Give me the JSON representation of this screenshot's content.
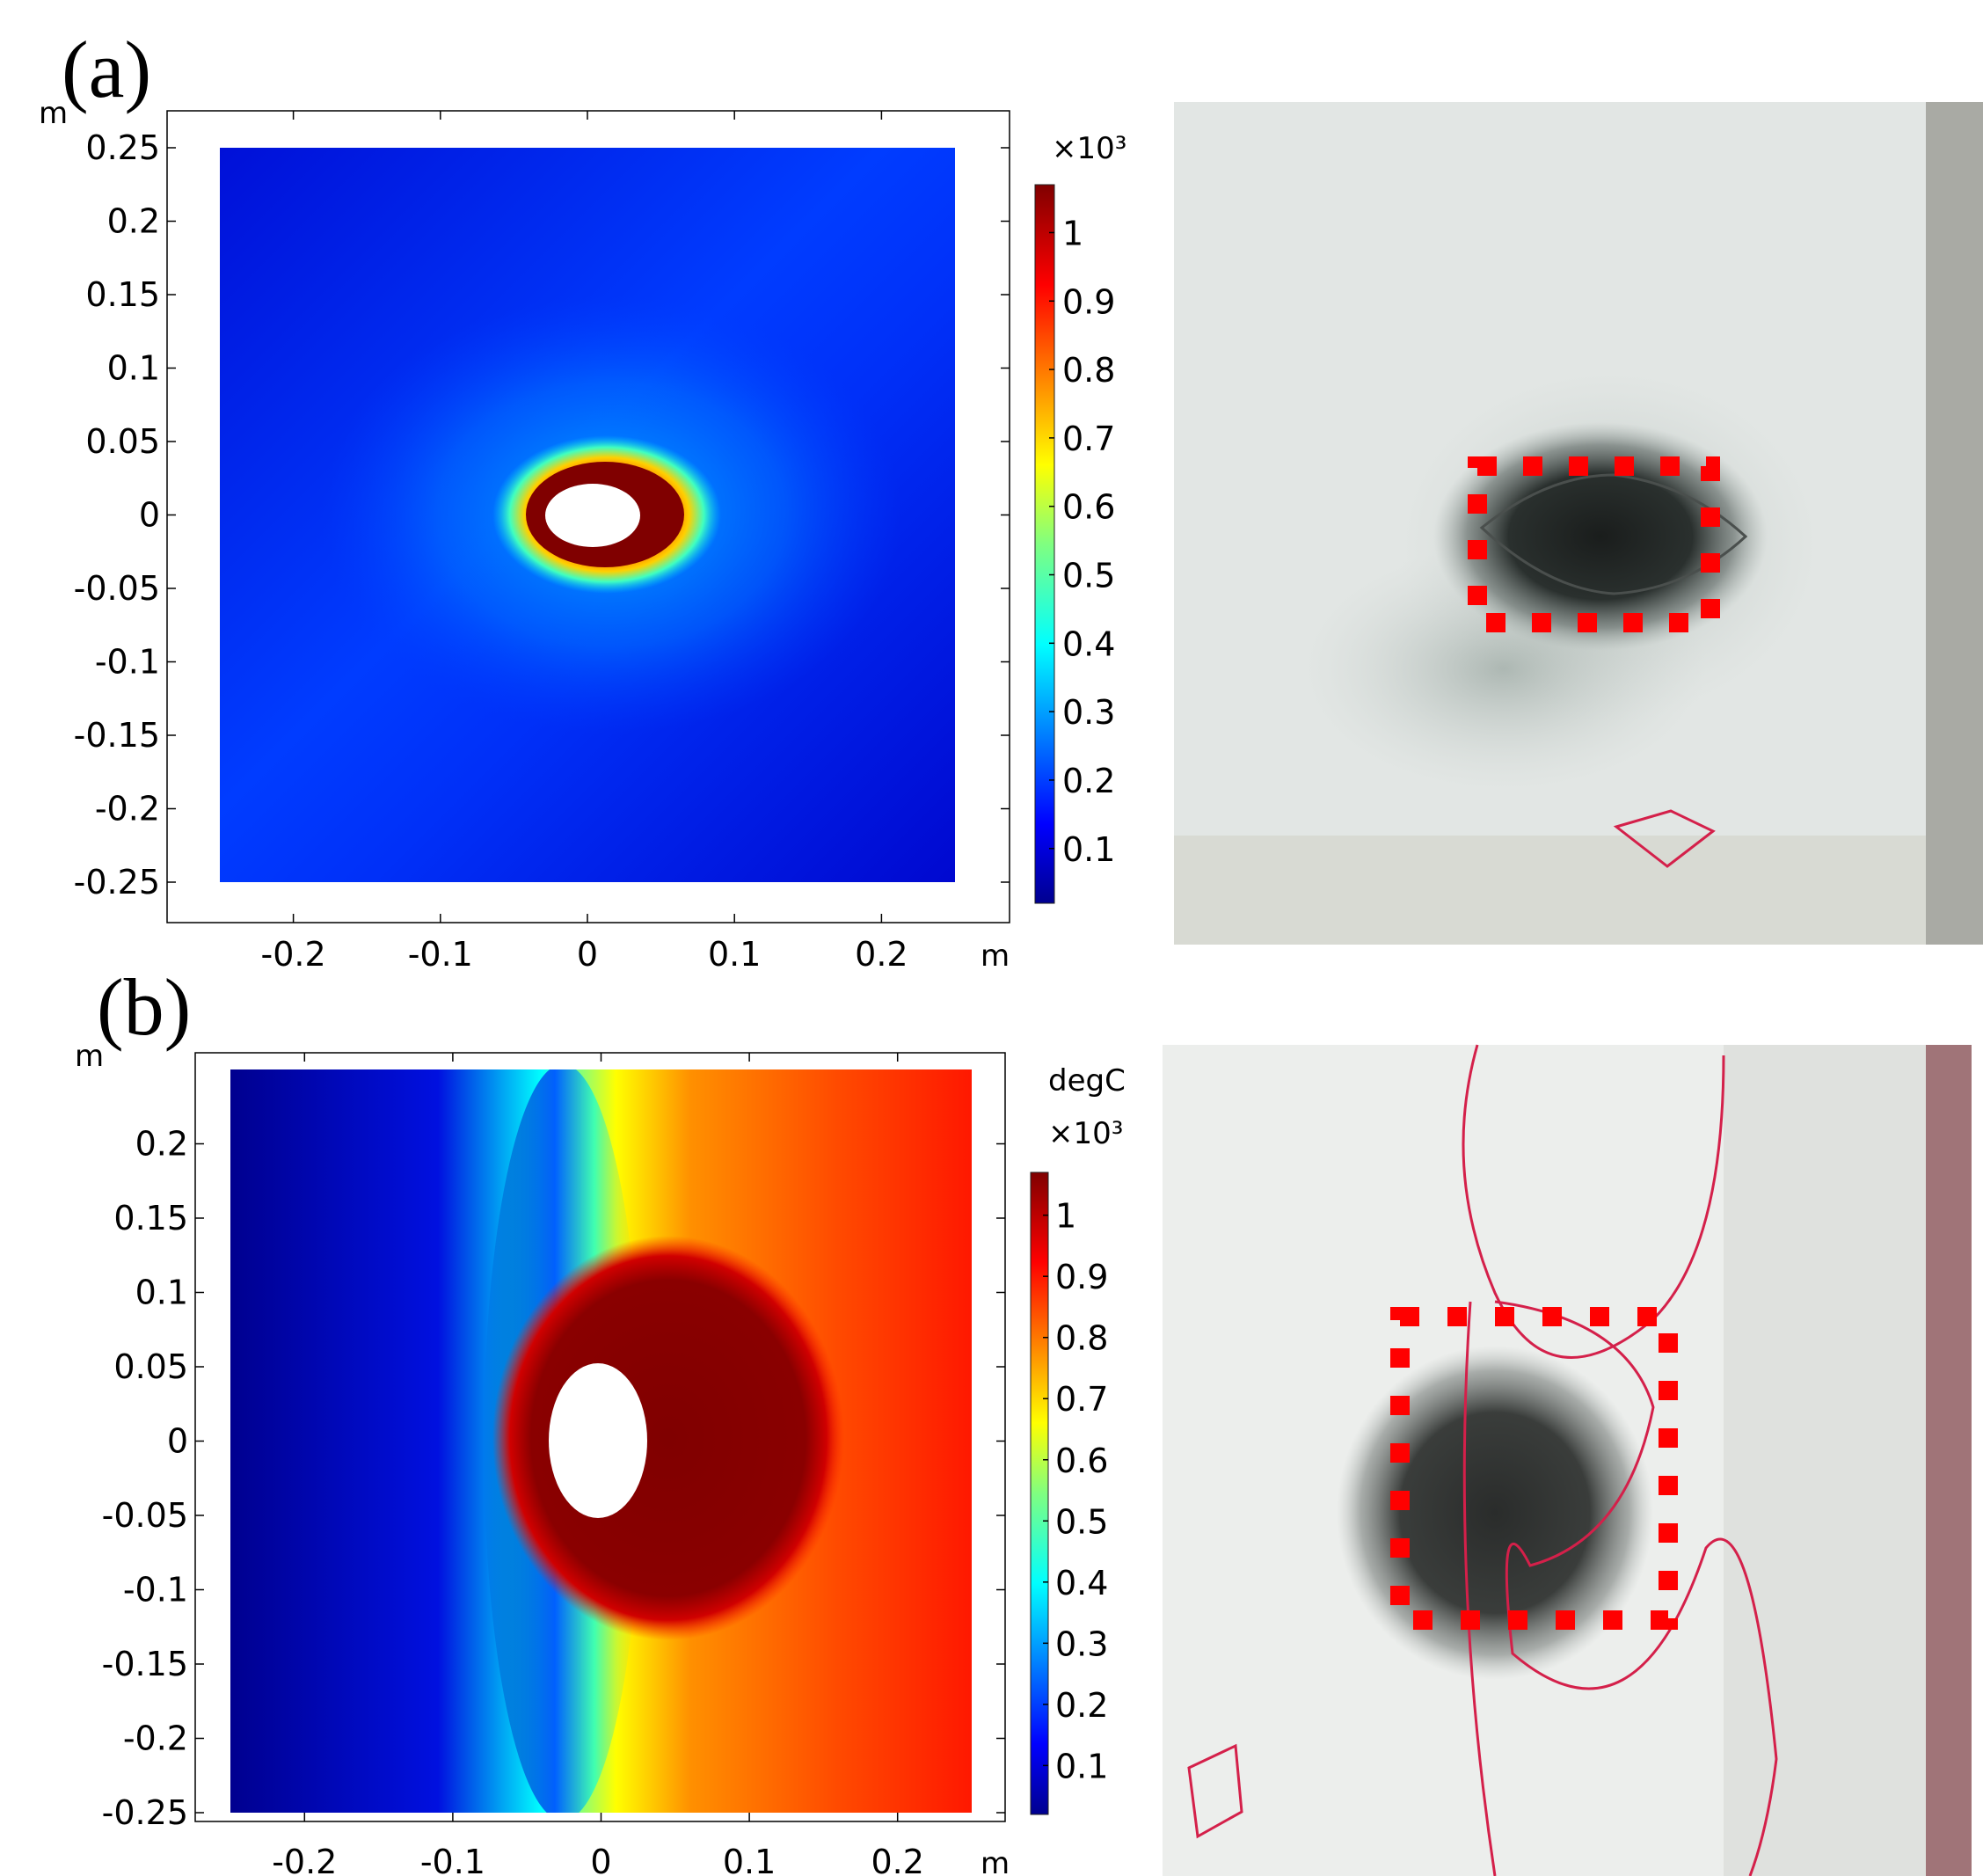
{
  "panels": [
    {
      "label": "(a)",
      "chart_data": {
        "type": "heatmap",
        "xlabel": "m",
        "ylabel": "m",
        "xlim": [
          -0.25,
          0.25
        ],
        "ylim": [
          -0.25,
          0.25
        ],
        "xticks": [
          -0.2,
          -0.1,
          0,
          0.1,
          0.2
        ],
        "xtick_labels": [
          "-0.2",
          "-0.1",
          "0",
          "0.1",
          "0.2"
        ],
        "yticks": [
          0.25,
          0.2,
          0.15,
          0.1,
          0.05,
          0,
          -0.05,
          -0.1,
          -0.15,
          -0.2,
          -0.25
        ],
        "ytick_labels": [
          "0.25",
          "0.2",
          "0.15",
          "0.1",
          "0.05",
          "0",
          "-0.05",
          "-0.1",
          "-0.15",
          "-0.2",
          "-0.25"
        ],
        "colorbar": {
          "unit": "",
          "multiplier": "×10³",
          "range": [
            0.02,
            1.07
          ],
          "colormap": "jet",
          "ticks": [
            1,
            0.9,
            0.8,
            0.7,
            0.6,
            0.5,
            0.4,
            0.3,
            0.2,
            0.1
          ],
          "tick_labels": [
            "1",
            "0.9",
            "0.8",
            "0.7",
            "0.6",
            "0.5",
            "0.4",
            "0.3",
            "0.2",
            "0.1"
          ]
        },
        "hole_ellipse": {
          "center": [
            0.003,
            0.005
          ],
          "semi_axes": [
            0.032,
            0.021
          ]
        },
        "hot_region": {
          "center": [
            0.012,
            0.005
          ],
          "semi_axes": [
            0.058,
            0.037
          ],
          "value": 1.07
        },
        "background_value": 0.15
      },
      "photo": {
        "description_free": true
      }
    },
    {
      "label": "(b)",
      "chart_data": {
        "type": "heatmap",
        "xlabel": "m",
        "ylabel": "m",
        "xlim": [
          -0.25,
          0.25
        ],
        "ylim": [
          -0.25,
          0.25
        ],
        "xticks": [
          -0.2,
          -0.1,
          0,
          0.1,
          0.2
        ],
        "xtick_labels": [
          "-0.2",
          "-0.1",
          "0",
          "0.1",
          "0.2"
        ],
        "yticks": [
          0.2,
          0.15,
          0.1,
          0.05,
          0,
          -0.05,
          -0.1,
          -0.15,
          -0.2,
          -0.25
        ],
        "ytick_labels": [
          "0.2",
          "0.15",
          "0.1",
          "0.05",
          "0",
          "-0.05",
          "-0.1",
          "-0.15",
          "-0.2",
          "-0.25"
        ],
        "colorbar": {
          "unit": "degC",
          "multiplier": "×10³",
          "range": [
            0.02,
            1.07
          ],
          "colormap": "jet",
          "ticks": [
            1,
            0.9,
            0.8,
            0.7,
            0.6,
            0.5,
            0.4,
            0.3,
            0.2,
            0.1
          ],
          "tick_labels": [
            "1",
            "0.9",
            "0.8",
            "0.7",
            "0.6",
            "0.5",
            "0.4",
            "0.3",
            "0.2",
            "0.1"
          ]
        },
        "hole_ellipse": {
          "center": [
            0.008,
            0.0
          ],
          "semi_axes": [
            0.033,
            0.053
          ]
        },
        "hot_region": {
          "center": [
            0.05,
            -0.005
          ],
          "semi_axes": [
            0.085,
            0.1
          ],
          "value": 1.07
        },
        "left_cold_value": 0.05,
        "right_hot_value": 0.95
      }
    }
  ],
  "colors": {
    "dashed_box": "#ff0000",
    "marker_line": "#d4204a",
    "hole": "#ffffff"
  }
}
